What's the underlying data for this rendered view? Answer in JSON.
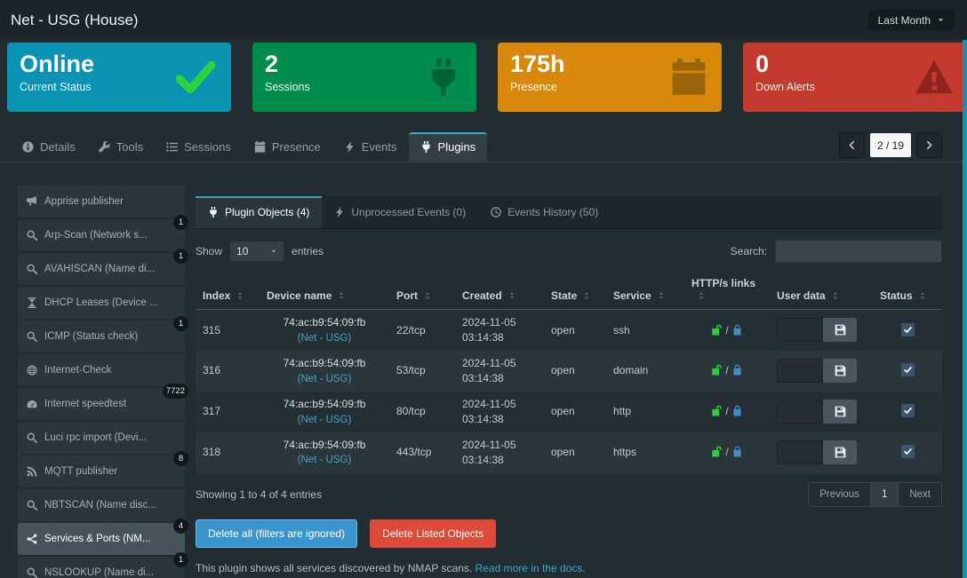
{
  "header": {
    "title": "Net - USG (House)",
    "period_label": "Last Month"
  },
  "summary_cards": [
    {
      "value": "Online",
      "label": "Current Status",
      "icon": "check",
      "bg": "#0a93b3"
    },
    {
      "value": "2",
      "label": "Sessions",
      "icon": "plug",
      "bg": "#008d4c"
    },
    {
      "value": "175h",
      "label": "Presence",
      "icon": "calendar",
      "bg": "#d8880b"
    },
    {
      "value": "0",
      "label": "Down Alerts",
      "icon": "warning",
      "bg": "#c53a2e"
    }
  ],
  "nav_tabs": [
    {
      "label": "Details",
      "icon": "info"
    },
    {
      "label": "Tools",
      "icon": "wrench"
    },
    {
      "label": "Sessions",
      "icon": "list"
    },
    {
      "label": "Presence",
      "icon": "calendar"
    },
    {
      "label": "Events",
      "icon": "bolt"
    },
    {
      "label": "Plugins",
      "icon": "plug"
    }
  ],
  "device_pager": {
    "value": "2 / 19"
  },
  "plugin_sidebar": [
    {
      "label": "Apprise publisher",
      "icon": "megaphone",
      "badge": ""
    },
    {
      "label": "Arp-Scan (Network s...",
      "icon": "search",
      "badge": "1"
    },
    {
      "label": "AVAHISCAN (Name di...",
      "icon": "search",
      "badge": "1"
    },
    {
      "label": "DHCP Leases (Device ...",
      "icon": "hourglass",
      "badge": ""
    },
    {
      "label": "ICMP (Status check)",
      "icon": "search",
      "badge": "1"
    },
    {
      "label": "Internet-Check",
      "icon": "globe",
      "badge": ""
    },
    {
      "label": "Internet speedtest",
      "icon": "speed",
      "badge": "7722"
    },
    {
      "label": "Luci rpc import (Devi...",
      "icon": "search",
      "badge": ""
    },
    {
      "label": "MQTT publisher",
      "icon": "mqtt",
      "badge": "8"
    },
    {
      "label": "NBTSCAN (Name disc...",
      "icon": "search",
      "badge": ""
    },
    {
      "label": "Services & Ports (NM...",
      "icon": "network",
      "badge": "4"
    },
    {
      "label": "NSLOOKUP (Name di...",
      "icon": "search",
      "badge": "1"
    }
  ],
  "panel_tabs": [
    {
      "label": "Plugin Objects (4)",
      "icon": "plug"
    },
    {
      "label": "Unprocessed Events (0)",
      "icon": "bolt"
    },
    {
      "label": "Events History (50)",
      "icon": "clock"
    }
  ],
  "controls": {
    "show_label": "Show",
    "entries_value": "10",
    "entries_label": "entries",
    "search_label": "Search:"
  },
  "table": {
    "columns": [
      "Index",
      "Device name",
      "Port",
      "Created",
      "State",
      "Service",
      "HTTP/s links",
      "User data",
      "Status"
    ],
    "rows": [
      {
        "index": "315",
        "device": "74:ac:b9:54:09:fb",
        "device_link": "(Net - USG)",
        "port": "22/tcp",
        "created_date": "2024-11-05",
        "created_time": "03:14:38",
        "state": "open",
        "service": "ssh"
      },
      {
        "index": "316",
        "device": "74:ac:b9:54:09:fb",
        "device_link": "(Net - USG)",
        "port": "53/tcp",
        "created_date": "2024-11-05",
        "created_time": "03:14:38",
        "state": "open",
        "service": "domain"
      },
      {
        "index": "317",
        "device": "74:ac:b9:54:09:fb",
        "device_link": "(Net - USG)",
        "port": "80/tcp",
        "created_date": "2024-11-05",
        "created_time": "03:14:38",
        "state": "open",
        "service": "http"
      },
      {
        "index": "318",
        "device": "74:ac:b9:54:09:fb",
        "device_link": "(Net - USG)",
        "port": "443/tcp",
        "created_date": "2024-11-05",
        "created_time": "03:14:38",
        "state": "open",
        "service": "https"
      }
    ]
  },
  "table_footer": {
    "summary": "Showing 1 to 4 of 4 entries",
    "previous": "Previous",
    "page": "1",
    "next": "Next"
  },
  "actions": {
    "delete_all": "Delete all (filters are ignored)",
    "delete_listed": "Delete Listed Objects"
  },
  "footer_note": {
    "text": "This plugin shows all services discovered by NMAP scans.",
    "link": "Read more in the docs."
  },
  "icons": {
    "period_caret": "caret-down",
    "entries_caret": "caret-down",
    "pager_prev": "chevron-left",
    "pager_next": "chevron-right",
    "sort": "sort",
    "lock_open": "lock-open",
    "lock_slash": "/",
    "lock_closed": "lock-closed",
    "save": "save",
    "checkbox_check": "check"
  },
  "colors": {
    "status_online": "#0a93b3",
    "sessions": "#008d4c",
    "presence": "#d8880b",
    "alerts": "#c53a2e",
    "accent_link": "#42a5c5",
    "lock_open": "#2ecc40",
    "lock_closed": "#3f8fc0",
    "delete_all_button": "#3a95cc",
    "delete_listed_button": "#dd4a38"
  }
}
